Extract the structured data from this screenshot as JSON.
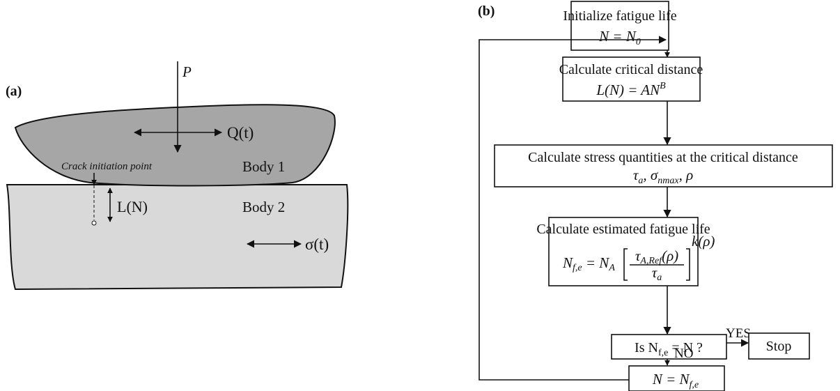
{
  "panel_a": {
    "label": "(a)",
    "force_p": "P",
    "force_q": "Q(t)",
    "crack_label": "Crack initiation point",
    "body1": "Body 1",
    "body2": "Body 2",
    "distance": "L(N)",
    "stress": "σ(t)"
  },
  "panel_b": {
    "label": "(b)",
    "nodes": [
      {
        "title": "Initialize fatigue life",
        "formula": [
          "N = N",
          "0"
        ]
      },
      {
        "title": "Calculate critical distance",
        "formula": [
          "L(N) = AN",
          "B"
        ]
      },
      {
        "title": "Calculate stress quantities at the critical distance",
        "formula": [
          "τ",
          "a",
          ", σ",
          "nmax",
          ", ρ"
        ]
      },
      {
        "title": "Calculate estimated fatigue life",
        "formula": [
          "N",
          "f,e",
          " = N",
          "A"
        ],
        "numerator": [
          "τ",
          "A,Ref",
          "(ρ)"
        ],
        "denominator": [
          "τ",
          "a"
        ],
        "exponent": "k(ρ)"
      },
      {
        "formula": [
          "Is N",
          "f,e",
          " = N ?"
        ]
      },
      {
        "title": "Stop"
      },
      {
        "formula": [
          "N = N",
          "f,e"
        ]
      }
    ],
    "yes": "YES",
    "no": "NO"
  }
}
